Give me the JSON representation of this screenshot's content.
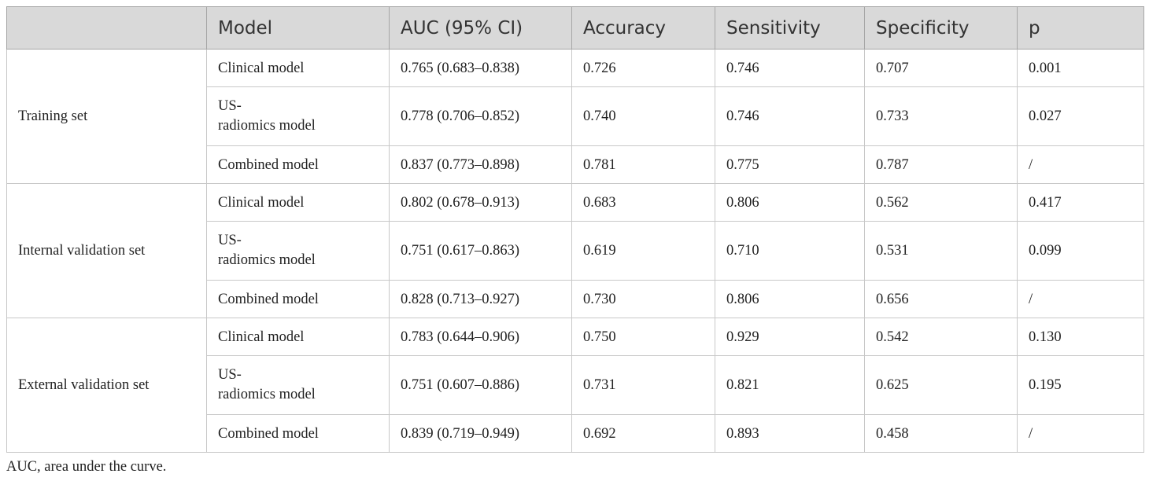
{
  "table": {
    "headers": [
      "",
      "Model",
      "AUC (95% CI)",
      "Accuracy",
      "Sensitivity",
      "Specificity",
      "p"
    ],
    "groups": [
      {
        "set": "Training set",
        "rows": [
          {
            "model": [
              "Clinical model"
            ],
            "auc": "0.765 (0.683–0.838)",
            "accuracy": "0.726",
            "sensitivity": "0.746",
            "specificity": "0.707",
            "p": "0.001"
          },
          {
            "model": [
              "US-",
              "radiomics model"
            ],
            "auc": "0.778 (0.706–0.852)",
            "accuracy": "0.740",
            "sensitivity": "0.746",
            "specificity": "0.733",
            "p": "0.027"
          },
          {
            "model": [
              "Combined model"
            ],
            "auc": "0.837 (0.773–0.898)",
            "accuracy": "0.781",
            "sensitivity": "0.775",
            "specificity": "0.787",
            "p": "/"
          }
        ]
      },
      {
        "set": "Internal validation set",
        "rows": [
          {
            "model": [
              "Clinical model"
            ],
            "auc": "0.802 (0.678–0.913)",
            "accuracy": "0.683",
            "sensitivity": "0.806",
            "specificity": "0.562",
            "p": "0.417"
          },
          {
            "model": [
              "US-",
              "radiomics model"
            ],
            "auc": "0.751 (0.617–0.863)",
            "accuracy": "0.619",
            "sensitivity": "0.710",
            "specificity": "0.531",
            "p": "0.099"
          },
          {
            "model": [
              "Combined model"
            ],
            "auc": "0.828 (0.713–0.927)",
            "accuracy": "0.730",
            "sensitivity": "0.806",
            "specificity": "0.656",
            "p": "/"
          }
        ]
      },
      {
        "set": "External validation set",
        "rows": [
          {
            "model": [
              "Clinical model"
            ],
            "auc": "0.783 (0.644–0.906)",
            "accuracy": "0.750",
            "sensitivity": "0.929",
            "specificity": "0.542",
            "p": "0.130"
          },
          {
            "model": [
              "US-",
              "radiomics model"
            ],
            "auc": "0.751 (0.607–0.886)",
            "accuracy": "0.731",
            "sensitivity": "0.821",
            "specificity": "0.625",
            "p": "0.195"
          },
          {
            "model": [
              "Combined model"
            ],
            "auc": "0.839 (0.719–0.949)",
            "accuracy": "0.692",
            "sensitivity": "0.893",
            "specificity": "0.458",
            "p": "/"
          }
        ]
      }
    ]
  },
  "footnote": "AUC, area under the curve.",
  "colors": {
    "header_bg": "#d9d9d9",
    "header_text": "#333333",
    "border": "#c8c8c8"
  }
}
